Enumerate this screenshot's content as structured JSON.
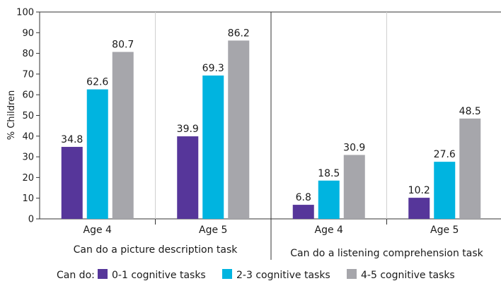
{
  "chart_data": {
    "type": "bar",
    "ylabel": "% Children",
    "ylim": [
      0,
      100
    ],
    "yticks": [
      0,
      10,
      20,
      30,
      40,
      50,
      60,
      70,
      80,
      90,
      100
    ],
    "grid": "vertical-separators",
    "legend_placement": "bottom",
    "legend_title": "Can do:",
    "series": [
      {
        "name": "0-1 cognitive tasks",
        "color": "#56369a"
      },
      {
        "name": "2-3 cognitive tasks",
        "color": "#00b4e0"
      },
      {
        "name": "4-5 cognitive tasks",
        "color": "#a6a6ab"
      }
    ],
    "groups": [
      {
        "label": "Can do a picture description task",
        "categories": [
          {
            "label": "Age 4",
            "values": [
              34.8,
              62.6,
              80.7
            ]
          },
          {
            "label": "Age 5",
            "values": [
              39.9,
              69.3,
              86.2
            ]
          }
        ]
      },
      {
        "label": "Can do a listening comprehension task",
        "categories": [
          {
            "label": "Age 4",
            "values": [
              6.8,
              18.5,
              30.9
            ]
          },
          {
            "label": "Age 5",
            "values": [
              10.2,
              27.6,
              48.5
            ]
          }
        ]
      }
    ]
  }
}
